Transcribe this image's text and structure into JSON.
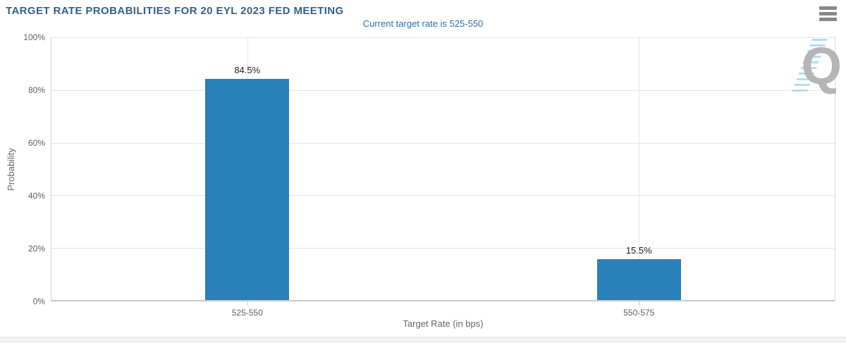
{
  "header": {
    "menu_icon": "hamburger-icon"
  },
  "chart_data": {
    "type": "bar",
    "title": "TARGET RATE PROBABILITIES FOR 20 EYL 2023 FED MEETING",
    "subtitle": "Current target rate is 525-550",
    "categories": [
      "525-550",
      "550-575"
    ],
    "values": [
      84.5,
      15.5
    ],
    "data_labels": [
      "84.5%",
      "15.5%"
    ],
    "xlabel": "Target Rate (in bps)",
    "ylabel": "Probability",
    "ylim": [
      0,
      100
    ],
    "yticks": [
      "0%",
      "20%",
      "40%",
      "60%",
      "80%",
      "100%"
    ],
    "grid": true,
    "legend": "none",
    "bar_color": "#2a80b9",
    "title_color": "#35608a",
    "subtitle_color": "#2f6daa",
    "watermark_letter": "Q"
  }
}
